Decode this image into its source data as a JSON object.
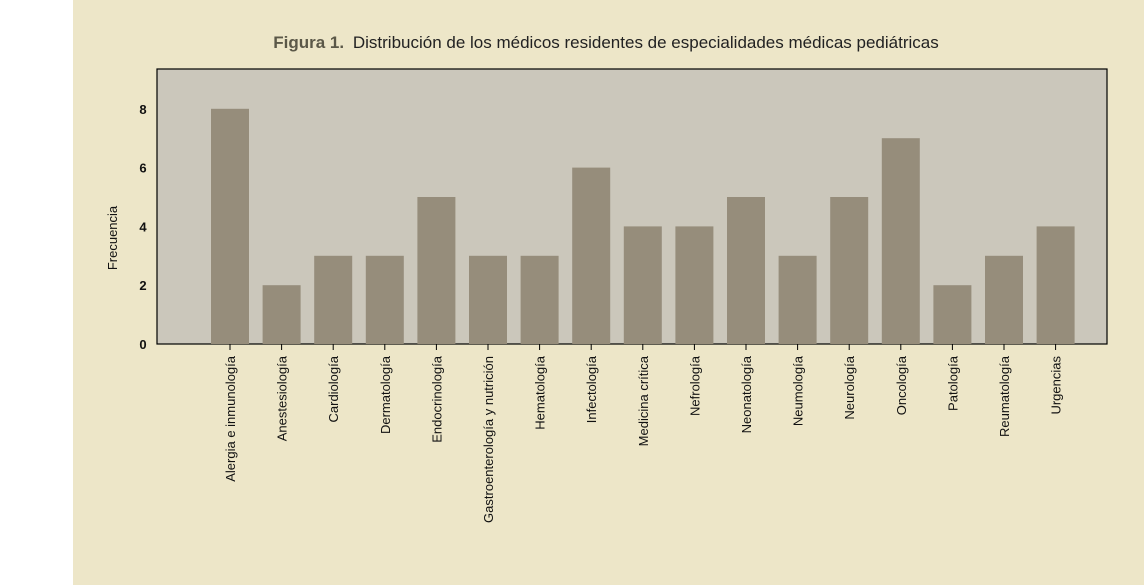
{
  "chart_data": {
    "type": "bar",
    "title_prefix": "Figura 1.",
    "title": "Distribución de los médicos residentes de especialidades médicas pediátricas",
    "xlabel": "",
    "ylabel": "Frecuencia",
    "ylim": [
      0,
      9.2
    ],
    "yticks": [
      0,
      2,
      4,
      6,
      8
    ],
    "grid": false,
    "categories": [
      "Alergia e inmunología",
      "Anestesiología",
      "Cardiología",
      "Dermatología",
      "Endocrinología",
      "Gastroenterología y nutrición",
      "Hematología",
      "Infectología",
      "Medicina crítica",
      "Nefrología",
      "Neonatología",
      "Neumología",
      "Neurología",
      "Oncología",
      "Patología",
      "Reumatología",
      "Urgencias"
    ],
    "values": [
      8,
      2,
      3,
      3,
      5,
      3,
      3,
      6,
      4,
      4,
      5,
      3,
      5,
      7,
      2,
      3,
      4
    ],
    "colors": {
      "background": "#ede6c8",
      "plot_area": "#cbc7bb",
      "bar": "#968d7b",
      "title_prefix": "#5b5848"
    }
  }
}
